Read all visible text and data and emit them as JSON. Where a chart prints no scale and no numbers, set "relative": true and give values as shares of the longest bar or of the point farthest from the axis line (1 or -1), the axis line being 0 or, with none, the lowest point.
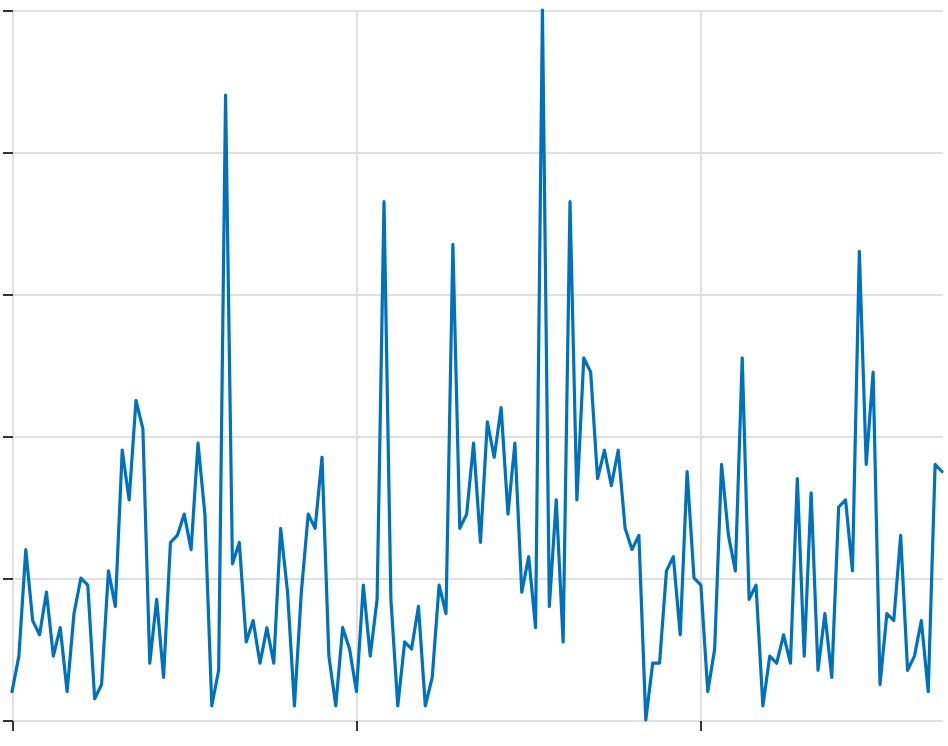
{
  "chart_data": {
    "type": "line",
    "relative": true,
    "grid": true,
    "color": "#0072bd",
    "categories": [
      null,
      null,
      null,
      null,
      null,
      null,
      null,
      null,
      null,
      null,
      null,
      null,
      null,
      null,
      null,
      null,
      null,
      null,
      null,
      null,
      null,
      null,
      null,
      null,
      null,
      null,
      null,
      null,
      null,
      null,
      null,
      null,
      null,
      null,
      null,
      null,
      null,
      null,
      null,
      null,
      null,
      null,
      null,
      null,
      null,
      null,
      null,
      null,
      null,
      null,
      null,
      null,
      null,
      null,
      null,
      null,
      null,
      null,
      null,
      null,
      null,
      null,
      null,
      null,
      null,
      null,
      null,
      null,
      null,
      null,
      null,
      null,
      null,
      null,
      null,
      null,
      null,
      null,
      null,
      null,
      null,
      null,
      null,
      null,
      null,
      null,
      null,
      null,
      null,
      null,
      null,
      null,
      null,
      null,
      null,
      null,
      null,
      null,
      null,
      null,
      null,
      null,
      null,
      null,
      null,
      null,
      null,
      null,
      null,
      null,
      null,
      null,
      null,
      null,
      null,
      null,
      null,
      null,
      null,
      null,
      null,
      null,
      null,
      null,
      null,
      null,
      null,
      null,
      null,
      null,
      null,
      null,
      null,
      null,
      null,
      null
    ],
    "values": [
      0.04,
      0.09,
      0.24,
      0.14,
      0.12,
      0.18,
      0.09,
      0.13,
      0.04,
      0.15,
      0.2,
      0.19,
      0.03,
      0.05,
      0.21,
      0.16,
      0.38,
      0.31,
      0.45,
      0.41,
      0.08,
      0.17,
      0.06,
      0.25,
      0.26,
      0.29,
      0.24,
      0.39,
      0.29,
      0.02,
      0.07,
      0.88,
      0.22,
      0.25,
      0.11,
      0.14,
      0.08,
      0.13,
      0.08,
      0.27,
      0.18,
      0.02,
      0.18,
      0.29,
      0.27,
      0.37,
      0.09,
      0.02,
      0.13,
      0.1,
      0.04,
      0.19,
      0.09,
      0.17,
      0.73,
      0.17,
      0.02,
      0.11,
      0.1,
      0.16,
      0.02,
      0.06,
      0.19,
      0.15,
      0.67,
      0.27,
      0.29,
      0.39,
      0.25,
      0.42,
      0.37,
      0.44,
      0.29,
      0.39,
      0.18,
      0.23,
      0.13,
      1,
      0.16,
      0.31,
      0.11,
      0.73,
      0.31,
      0.51,
      0.49,
      0.34,
      0.38,
      0.33,
      0.38,
      0.27,
      0.24,
      0.26,
      0,
      0.08,
      0.08,
      0.21,
      0.23,
      0.12,
      0.35,
      0.2,
      0.19,
      0.04,
      0.1,
      0.36,
      0.26,
      0.21,
      0.51,
      0.17,
      0.19,
      0.02,
      0.09,
      0.08,
      0.12,
      0.08,
      0.34,
      0.09,
      0.32,
      0.07,
      0.15,
      0.06,
      0.3,
      0.31,
      0.21,
      0.66,
      0.36,
      0.49,
      0.05,
      0.15,
      0.14,
      0.26,
      0.07,
      0.09,
      0.14,
      0.04,
      0.36,
      0.35
    ]
  }
}
